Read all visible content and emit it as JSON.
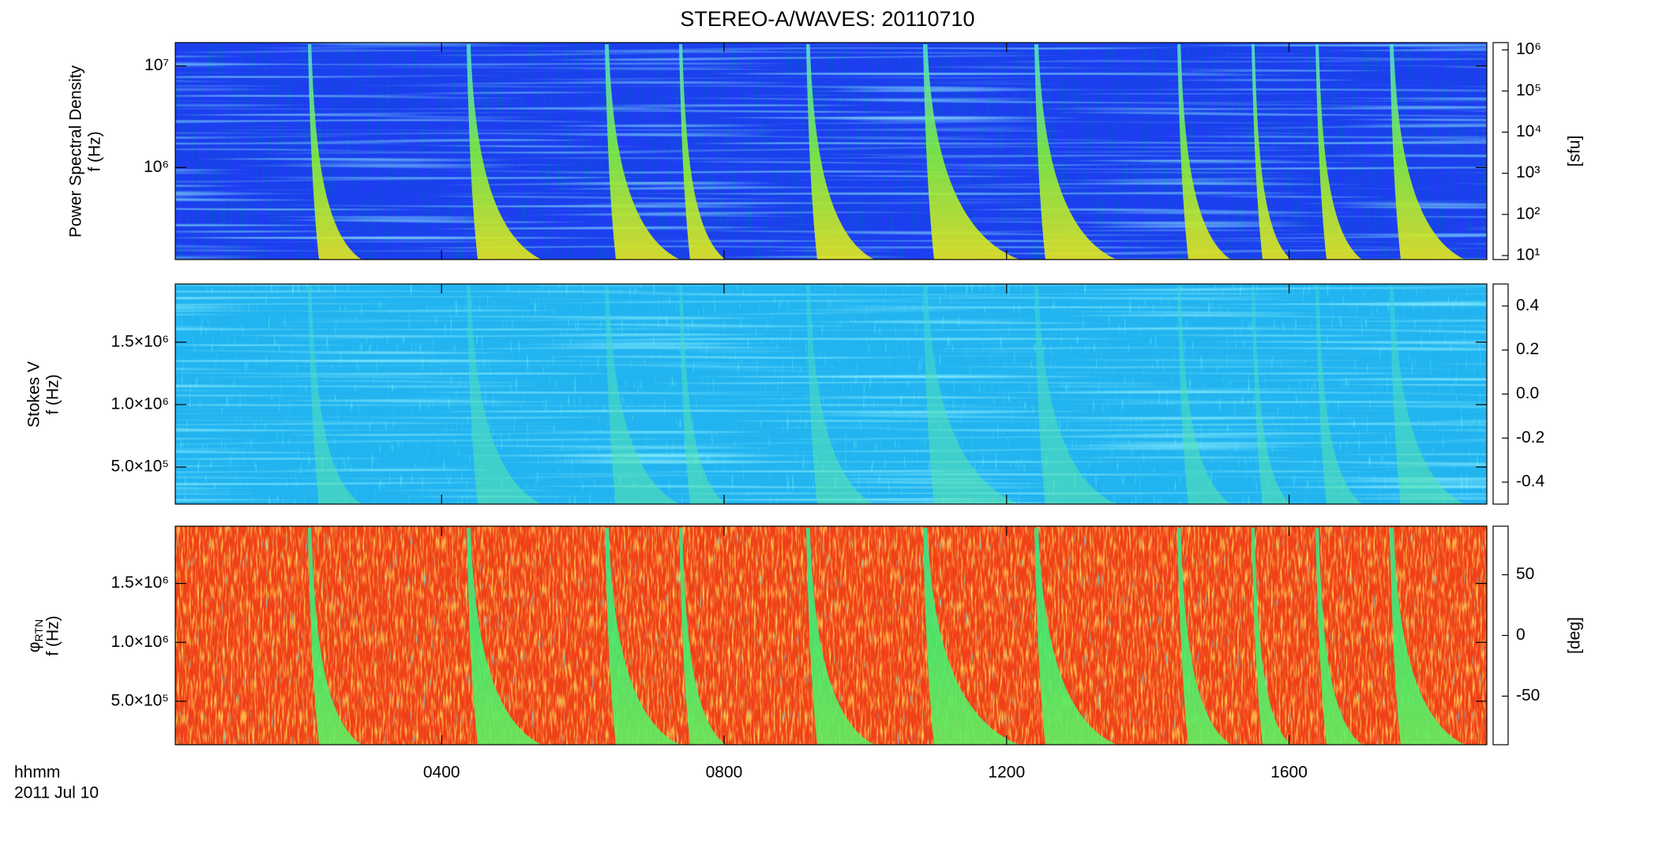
{
  "chart_data": [
    {
      "type": "spectrogram",
      "title": "STEREO-A/WAVES: 20110710",
      "ylabel": "Power Spectral Density",
      "yunit": "f (Hz)",
      "log": true,
      "ylim": [
        124000,
        17000000
      ],
      "yticks": [
        {
          "value": 1000000,
          "label": "10⁶"
        },
        {
          "value": 10000000,
          "label": "10⁷"
        }
      ],
      "xlim": [
        0.23,
        18.8
      ],
      "background": "#1f3cf2",
      "burst_color": [
        "#52e0d0",
        "#7ef03a",
        "#e8e81a"
      ],
      "colorbar": {
        "log": true,
        "lim": [
          8,
          1500000
        ],
        "label": "[sfu]",
        "colors": [
          "#1a001a",
          "#3a0090",
          "#0010ff",
          "#00c0ff",
          "#00e060",
          "#e0ff00",
          "#ff8000",
          "#ff0000"
        ],
        "ticks": [
          {
            "value": 10,
            "label": "10¹"
          },
          {
            "value": 100,
            "label": "10²"
          },
          {
            "value": 1000,
            "label": "10³"
          },
          {
            "value": 10000,
            "label": "10⁴"
          },
          {
            "value": 100000,
            "label": "10⁵"
          },
          {
            "value": 1000000,
            "label": "10⁶"
          }
        ]
      }
    },
    {
      "type": "spectrogram",
      "ylabel": "Stokes V",
      "yunit": "f (Hz)",
      "log": false,
      "ylim": [
        203000,
        1966000
      ],
      "yticks": [
        {
          "value": 500000,
          "label": "5.0×10⁵"
        },
        {
          "value": 1000000,
          "label": "1.0×10⁶"
        },
        {
          "value": 1500000,
          "label": "1.5×10⁶"
        }
      ],
      "xlim": [
        0.23,
        18.8
      ],
      "background": "#22b4f0",
      "burst_color": [
        "#3ad8d8",
        "#4fe0b8",
        "#5ae8a8"
      ],
      "colorbar": {
        "log": false,
        "lim": [
          -0.5,
          0.5
        ],
        "colors": [
          "#1a001a",
          "#3a0090",
          "#0010ff",
          "#00c0ff",
          "#00e060",
          "#e0ff00",
          "#ff8000",
          "#ff0000"
        ],
        "ticks": [
          -0.4,
          -0.2,
          {
            "value": 0,
            "label": "0.0"
          },
          0.2,
          0.4
        ]
      }
    },
    {
      "type": "spectrogram",
      "ylabel": "φ",
      "ylabel_sub": "RTN",
      "yunit": "f (Hz)",
      "log": false,
      "ylim": [
        131000,
        1986000
      ],
      "yticks": [
        {
          "value": 500000,
          "label": "5.0×10⁵"
        },
        {
          "value": 1000000,
          "label": "1.0×10⁶"
        },
        {
          "value": 1500000,
          "label": "1.5×10⁶"
        }
      ],
      "xlim": [
        0.23,
        18.8
      ],
      "xticks": [
        {
          "value": 4,
          "label": "0400"
        },
        {
          "value": 8,
          "label": "0800"
        },
        {
          "value": 12,
          "label": "1200"
        },
        {
          "value": 16,
          "label": "1600"
        }
      ],
      "xlabel": "hhmm",
      "date": "2011 Jul 10",
      "background": "#f04018",
      "burst_color": [
        "#30e890",
        "#40f070",
        "#60f060"
      ],
      "colorbar": {
        "log": false,
        "lim": [
          -90,
          90
        ],
        "label": "[deg]",
        "colors": [
          "#1a001a",
          "#3a0090",
          "#0010ff",
          "#00c0ff",
          "#00e060",
          "#e0ff00",
          "#ff8000",
          "#ff0000"
        ],
        "ticks": [
          -50,
          0,
          50
        ]
      }
    }
  ]
}
